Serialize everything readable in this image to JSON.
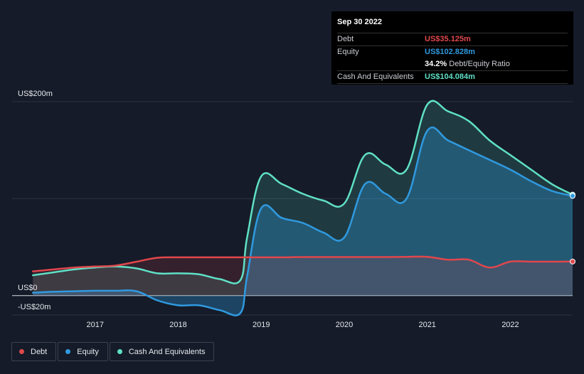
{
  "tooltip": {
    "date": "Sep 30 2022",
    "debt_label": "Debt",
    "debt_value": "US$35.125m",
    "equity_label": "Equity",
    "equity_value": "US$102.828m",
    "ratio_value": "34.2%",
    "ratio_label": "Debt/Equity Ratio",
    "cash_label": "Cash And Equivalents",
    "cash_value": "US$104.084m"
  },
  "legend": [
    {
      "label": "Debt",
      "color": "#e0474c"
    },
    {
      "label": "Equity",
      "color": "#2f9ae0"
    },
    {
      "label": "Cash And Equivalents",
      "color": "#5fe0c6"
    }
  ],
  "chart_data": {
    "type": "area",
    "title": "",
    "xlabel": "",
    "ylabel": "",
    "y_tick_labels": [
      "US$200m",
      "US$0",
      "-US$20m"
    ],
    "x_tick_labels": [
      "2017",
      "2018",
      "2019",
      "2020",
      "2021",
      "2022"
    ],
    "ylim": [
      -20,
      200
    ],
    "grid": "horizontal",
    "legend_position": "bottom-left",
    "x": [
      2016.25,
      2016.5,
      2016.75,
      2017.0,
      2017.25,
      2017.5,
      2017.75,
      2018.0,
      2018.25,
      2018.5,
      2018.75,
      2018.83,
      2019.0,
      2019.25,
      2019.5,
      2019.75,
      2020.0,
      2020.25,
      2020.5,
      2020.75,
      2021.0,
      2021.25,
      2021.5,
      2021.75,
      2022.0,
      2022.25,
      2022.5,
      2022.75
    ],
    "series": [
      {
        "name": "Debt",
        "color": "#e0474c",
        "values": [
          25,
          27,
          29,
          30,
          31,
          35,
          39,
          39.5,
          39.5,
          39.5,
          39.5,
          39.5,
          39.5,
          39.5,
          39.8,
          39.8,
          39.8,
          39.8,
          39.8,
          40,
          40,
          37,
          37,
          29,
          35,
          35,
          35,
          35.125
        ]
      },
      {
        "name": "Equity",
        "color": "#2f9ae0",
        "values": [
          3,
          4,
          4.5,
          5,
          5,
          4.5,
          -5,
          -10,
          -10,
          -15,
          -18,
          20,
          90,
          80,
          75,
          65,
          60,
          115,
          105,
          100,
          170,
          160,
          150,
          140,
          130,
          118,
          108,
          102.828
        ]
      },
      {
        "name": "Cash And Equivalents",
        "color": "#5fe0c6",
        "values": [
          21,
          24,
          27,
          29,
          30,
          28,
          23,
          23,
          22,
          17,
          16,
          60,
          123,
          115,
          105,
          98,
          95,
          145,
          135,
          130,
          197,
          190,
          180,
          160,
          145,
          130,
          115,
          104.084
        ]
      }
    ]
  }
}
